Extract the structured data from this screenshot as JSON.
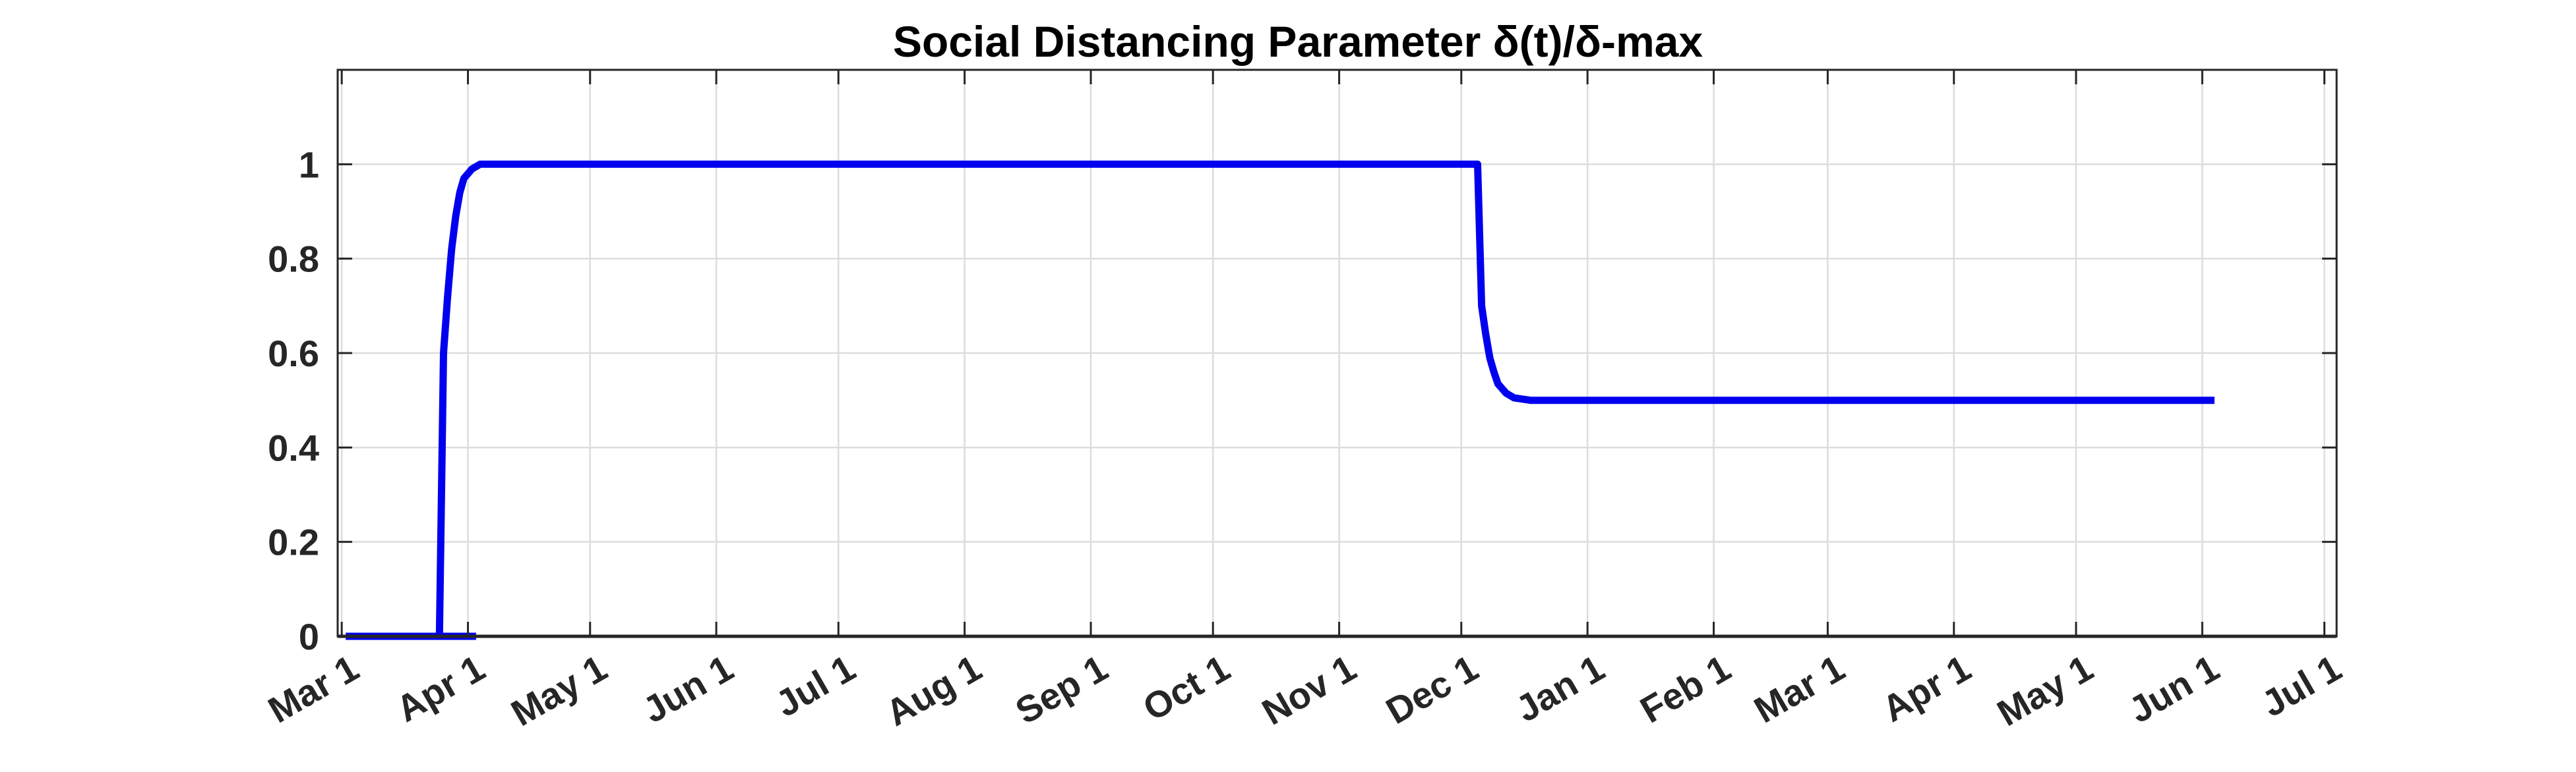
{
  "chart_data": {
    "type": "line",
    "title": "Social Distancing Parameter δ(t)/δ-max",
    "xlabel": "",
    "ylabel": "",
    "x_tick_labels": [
      "Mar 1",
      "Apr 1",
      "May 1",
      "Jun 1",
      "Jul 1",
      "Aug 1",
      "Sep 1",
      "Oct 1",
      "Nov 1",
      "Dec 1",
      "Jan 1",
      "Feb 1",
      "Mar 1",
      "Apr 1",
      "May 1",
      "Jun 1",
      "Jul 1"
    ],
    "x_tick_days": [
      0,
      31,
      61,
      92,
      122,
      153,
      184,
      214,
      245,
      275,
      306,
      337,
      365,
      396,
      426,
      457,
      487
    ],
    "xlim": [
      -1,
      490
    ],
    "ylim": [
      0,
      1.2
    ],
    "y_ticks": [
      0,
      0.2,
      0.4,
      0.6,
      0.8,
      1
    ],
    "y_tick_labels": [
      "0",
      "0.2",
      "0.4",
      "0.6",
      "0.8",
      "1"
    ],
    "grid": true,
    "series": [
      {
        "name": "",
        "color": "#0000ee",
        "points": [
          [
            1,
            0
          ],
          [
            5,
            0
          ],
          [
            10,
            0
          ],
          [
            15,
            0
          ],
          [
            20,
            0
          ],
          [
            23,
            0
          ],
          [
            24,
            0
          ],
          [
            25,
            0.6
          ],
          [
            26,
            0.72
          ],
          [
            27,
            0.82
          ],
          [
            28,
            0.89
          ],
          [
            29,
            0.94
          ],
          [
            30,
            0.97
          ],
          [
            32,
            0.99
          ],
          [
            34,
            1.0
          ],
          [
            40,
            1.0
          ],
          [
            60,
            1.0
          ],
          [
            100,
            1.0
          ],
          [
            150,
            1.0
          ],
          [
            200,
            1.0
          ],
          [
            250,
            1.0
          ],
          [
            270,
            1.0
          ],
          [
            279,
            1.0
          ],
          [
            280,
            0.7
          ],
          [
            281,
            0.64
          ],
          [
            282,
            0.59
          ],
          [
            283,
            0.56
          ],
          [
            284,
            0.535
          ],
          [
            286,
            0.515
          ],
          [
            288,
            0.505
          ],
          [
            292,
            0.5
          ],
          [
            300,
            0.5
          ],
          [
            350,
            0.5
          ],
          [
            400,
            0.5
          ],
          [
            450,
            0.5
          ],
          [
            460,
            0.5
          ]
        ]
      },
      {
        "name": "",
        "color": "#0000ee",
        "points": [
          [
            1,
            0
          ],
          [
            33,
            0
          ]
        ]
      }
    ]
  }
}
